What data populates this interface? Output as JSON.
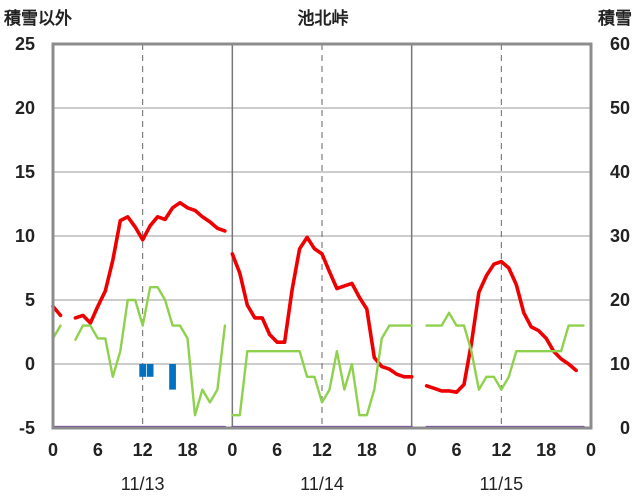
{
  "chart_data": {
    "type": "line",
    "title": "池北峠",
    "left_axis_title": "積雪以外",
    "right_axis_title": "積雪",
    "ylim_left": [
      -5,
      25
    ],
    "ylim_right": [
      0,
      60
    ],
    "left_ticks": [
      "25",
      "20",
      "15",
      "10",
      "5",
      "0",
      "-5"
    ],
    "right_ticks": [
      "60",
      "50",
      "40",
      "30",
      "20",
      "10",
      "0"
    ],
    "hour_ticks": [
      "0",
      "6",
      "12",
      "18",
      "0",
      "6",
      "12",
      "18",
      "0",
      "6",
      "12",
      "18",
      "0"
    ],
    "dates": [
      "11/13",
      "11/14",
      "11/15"
    ],
    "grid": true,
    "series": [
      {
        "color": "#ee0000",
        "axis": "left",
        "segments": [
          [
            [
              0,
              4.5
            ],
            [
              1,
              3.8
            ]
          ],
          [
            [
              3,
              3.6
            ],
            [
              4,
              3.8
            ],
            [
              5,
              3.2
            ],
            [
              6,
              4.5
            ],
            [
              7,
              5.7
            ],
            [
              8,
              8.1
            ],
            [
              9,
              11.2
            ],
            [
              10,
              11.5
            ],
            [
              11,
              10.7
            ],
            [
              12,
              9.7
            ],
            [
              13,
              10.8
            ],
            [
              14,
              11.5
            ],
            [
              15,
              11.3
            ],
            [
              16,
              12.2
            ],
            [
              17,
              12.6
            ],
            [
              18,
              12.2
            ],
            [
              19,
              12.0
            ],
            [
              20,
              11.5
            ],
            [
              21,
              11.1
            ],
            [
              22,
              10.6
            ],
            [
              23,
              10.4
            ]
          ],
          [
            [
              24,
              8.6
            ],
            [
              25,
              7.1
            ],
            [
              26,
              4.6
            ],
            [
              27,
              3.6
            ],
            [
              28,
              3.6
            ],
            [
              29,
              2.3
            ],
            [
              30,
              1.7
            ],
            [
              31,
              1.7
            ],
            [
              32,
              5.8
            ],
            [
              33,
              9.0
            ],
            [
              34,
              9.9
            ],
            [
              35,
              9.0
            ],
            [
              36,
              8.6
            ],
            [
              37,
              7.2
            ],
            [
              38,
              5.9
            ],
            [
              39,
              6.1
            ],
            [
              40,
              6.3
            ],
            [
              41,
              5.2
            ],
            [
              42,
              4.3
            ],
            [
              43,
              0.5
            ],
            [
              44,
              -0.2
            ],
            [
              45,
              -0.4
            ],
            [
              46,
              -0.8
            ],
            [
              47,
              -1.0
            ],
            [
              48,
              -1.0
            ]
          ],
          [
            [
              50,
              -1.7
            ],
            [
              51,
              -1.9
            ],
            [
              52,
              -2.1
            ],
            [
              53,
              -2.1
            ],
            [
              54,
              -2.2
            ],
            [
              55,
              -1.6
            ],
            [
              56,
              1.6
            ],
            [
              57,
              5.6
            ],
            [
              58,
              6.9
            ],
            [
              59,
              7.8
            ],
            [
              60,
              8.0
            ],
            [
              61,
              7.5
            ],
            [
              62,
              6.2
            ],
            [
              63,
              4.0
            ],
            [
              64,
              2.9
            ],
            [
              65,
              2.6
            ],
            [
              66,
              2.0
            ],
            [
              67,
              1.0
            ],
            [
              68,
              0.4
            ],
            [
              69,
              -0.0
            ],
            [
              70,
              -0.5
            ]
          ]
        ]
      },
      {
        "color": "#8ed14d",
        "axis": "left",
        "segments": [
          [
            [
              0,
              2.0
            ],
            [
              1,
              3.0
            ]
          ],
          [
            [
              3,
              1.9
            ],
            [
              4,
              3.0
            ],
            [
              5,
              3.0
            ],
            [
              6,
              2.0
            ],
            [
              7,
              2.0
            ],
            [
              8,
              -1.0
            ],
            [
              9,
              1.0
            ],
            [
              10,
              5.0
            ],
            [
              11,
              5.0
            ],
            [
              12,
              3.0
            ],
            [
              13,
              6.0
            ],
            [
              14,
              6.0
            ],
            [
              15,
              5.0
            ],
            [
              16,
              3.0
            ],
            [
              17,
              3.0
            ],
            [
              18,
              2.0
            ],
            [
              19,
              -4.0
            ],
            [
              20,
              -2.0
            ],
            [
              21,
              -3.0
            ],
            [
              22,
              -2.0
            ],
            [
              23,
              3.0
            ]
          ],
          [
            [
              24,
              -4.0
            ],
            [
              25,
              -4.0
            ],
            [
              26,
              1.0
            ],
            [
              27,
              1.0
            ],
            [
              28,
              1.0
            ],
            [
              29,
              1.0
            ],
            [
              30,
              1.0
            ],
            [
              31,
              1.0
            ],
            [
              32,
              1.0
            ],
            [
              33,
              1.0
            ],
            [
              34,
              -1.0
            ],
            [
              35,
              -1.0
            ],
            [
              36,
              -3.0
            ],
            [
              37,
              -2.0
            ],
            [
              38,
              1.0
            ],
            [
              39,
              -2.0
            ],
            [
              40,
              0.0
            ],
            [
              41,
              -4.0
            ],
            [
              42,
              -4.0
            ],
            [
              43,
              -2.0
            ],
            [
              44,
              2.0
            ],
            [
              45,
              3.0
            ],
            [
              46,
              3.0
            ],
            [
              47,
              3.0
            ],
            [
              48,
              3.0
            ]
          ],
          [
            [
              50,
              3.0
            ],
            [
              51,
              3.0
            ],
            [
              52,
              3.0
            ],
            [
              53,
              4.0
            ],
            [
              54,
              3.0
            ],
            [
              55,
              3.0
            ],
            [
              56,
              1.0
            ],
            [
              57,
              -2.0
            ],
            [
              58,
              -1.0
            ],
            [
              59,
              -1.0
            ],
            [
              60,
              -2.0
            ],
            [
              61,
              -1.0
            ],
            [
              62,
              1.0
            ],
            [
              63,
              1.0
            ],
            [
              64,
              1.0
            ],
            [
              65,
              1.0
            ],
            [
              66,
              1.0
            ],
            [
              67,
              1.0
            ],
            [
              68,
              1.0
            ],
            [
              69,
              3.0
            ],
            [
              70,
              3.0
            ],
            [
              71,
              3.0
            ]
          ]
        ]
      },
      {
        "color": "#7030a0",
        "axis": "left",
        "segments": [
          [
            [
              0,
              -4.95
            ],
            [
              23,
              -4.95
            ]
          ],
          [
            [
              24,
              -4.95
            ],
            [
              48,
              -4.95
            ]
          ],
          [
            [
              50,
              -4.95
            ],
            [
              71,
              -4.95
            ]
          ]
        ]
      }
    ],
    "bars": {
      "type": "bar",
      "color": "#0070c0",
      "axis": "left",
      "values": [
        [
          12,
          -1.0
        ],
        [
          13,
          -1.0
        ],
        [
          16,
          -2.0
        ]
      ]
    }
  }
}
